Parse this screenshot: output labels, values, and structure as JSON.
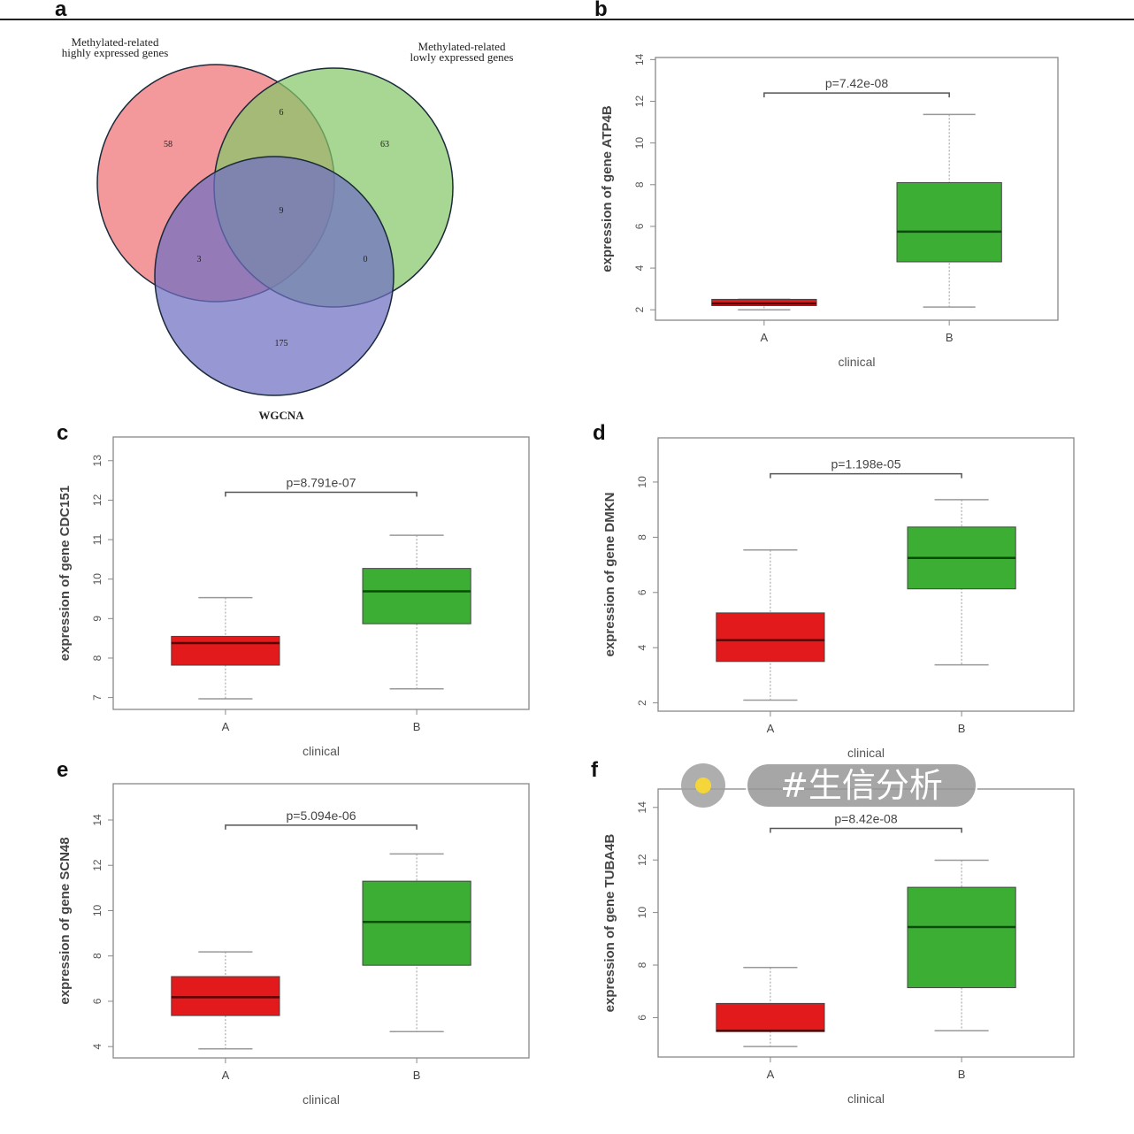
{
  "panel_labels": [
    "a",
    "b",
    "c",
    "d",
    "e",
    "f"
  ],
  "venn": {
    "sets": [
      "Methylated-related highly expressed genes",
      "Methylated-related lowly expressed genes",
      "WGCNA"
    ],
    "set_label_lines": [
      [
        "Methylated-related",
        "highly expressed genes"
      ],
      [
        "Methylated-related",
        "lowly expressed genes"
      ],
      [
        "WGCNA"
      ]
    ],
    "colors": [
      "#ef7276",
      "#86c66a",
      "#6f6fc4"
    ],
    "regions": {
      "high_only": "58",
      "high_low": "6",
      "low_only": "63",
      "all_three": "9",
      "high_wgcna": "3",
      "low_wgcna": "0",
      "wgcna_only": "175"
    }
  },
  "chart_data": [
    {
      "panel": "b",
      "type": "box",
      "xlabel": "clinical",
      "ylabel": "expression of gene ATP4B",
      "categories": [
        "A",
        "B"
      ],
      "yticks": [
        2,
        4,
        6,
        8,
        10,
        12,
        14
      ],
      "ylim": [
        1.5,
        14.1
      ],
      "pvalue": "p=7.42e-08",
      "bracket_y": 12.4,
      "boxes": [
        {
          "min": 2.0,
          "q1": 2.2,
          "median": 2.3,
          "q3": 2.5,
          "max": 2.5,
          "color": "#e31a1c"
        },
        {
          "min": 2.13,
          "q1": 4.3,
          "median": 5.75,
          "q3": 8.1,
          "max": 11.37,
          "color": "#3cae34"
        }
      ]
    },
    {
      "panel": "c",
      "type": "box",
      "xlabel": "clinical",
      "ylabel": "expression of gene   CDC151",
      "categories": [
        "A",
        "B"
      ],
      "yticks": [
        7,
        8,
        9,
        10,
        11,
        12,
        13
      ],
      "ylim": [
        6.7,
        13.6
      ],
      "pvalue": "p=8.791e-07",
      "bracket_y": 12.2,
      "boxes": [
        {
          "min": 6.97,
          "q1": 7.82,
          "median": 8.38,
          "q3": 8.55,
          "max": 9.53,
          "color": "#e31a1c"
        },
        {
          "min": 7.22,
          "q1": 8.87,
          "median": 9.69,
          "q3": 10.27,
          "max": 11.11,
          "color": "#3cae34"
        }
      ]
    },
    {
      "panel": "d",
      "type": "box",
      "xlabel": "clinical",
      "ylabel": "expression of gene   DMKN",
      "categories": [
        "A",
        "B"
      ],
      "yticks": [
        2,
        4,
        6,
        8,
        10
      ],
      "ylim": [
        1.7,
        11.6
      ],
      "pvalue": "p=1.198e-05",
      "bracket_y": 10.3,
      "boxes": [
        {
          "min": 2.1,
          "q1": 3.5,
          "median": 4.27,
          "q3": 5.26,
          "max": 7.54,
          "color": "#e31a1c"
        },
        {
          "min": 3.38,
          "q1": 6.13,
          "median": 7.25,
          "q3": 8.37,
          "max": 9.36,
          "color": "#3cae34"
        }
      ]
    },
    {
      "panel": "e",
      "type": "box",
      "xlabel": "clinical",
      "ylabel": "expression of gene   SCN48",
      "categories": [
        "A",
        "B"
      ],
      "yticks": [
        4,
        6,
        8,
        10,
        12,
        14
      ],
      "ylim": [
        3.5,
        15.6
      ],
      "pvalue": "p=5.094e-06",
      "bracket_y": 13.77,
      "boxes": [
        {
          "min": 3.9,
          "q1": 5.37,
          "median": 6.18,
          "q3": 7.09,
          "max": 8.18,
          "color": "#e31a1c"
        },
        {
          "min": 4.66,
          "q1": 7.59,
          "median": 9.5,
          "q3": 11.3,
          "max": 12.5,
          "color": "#3cae34"
        }
      ]
    },
    {
      "panel": "f",
      "type": "box",
      "xlabel": "clinical",
      "ylabel": "expression of gene   TUBA4B",
      "categories": [
        "A",
        "B"
      ],
      "yticks": [
        6,
        8,
        10,
        12,
        14
      ],
      "ylim": [
        4.5,
        14.7
      ],
      "pvalue": "p=8.42e-08",
      "bracket_y": 13.2,
      "boxes": [
        {
          "min": 4.9,
          "q1": 5.47,
          "median": 5.5,
          "q3": 6.54,
          "max": 7.91,
          "color": "#e31a1c"
        },
        {
          "min": 5.5,
          "q1": 7.14,
          "median": 9.45,
          "q3": 10.96,
          "max": 11.99,
          "color": "#3cae34"
        }
      ]
    }
  ],
  "watermark": {
    "text": "#生信分析",
    "dot_color": "#f4d63a"
  }
}
